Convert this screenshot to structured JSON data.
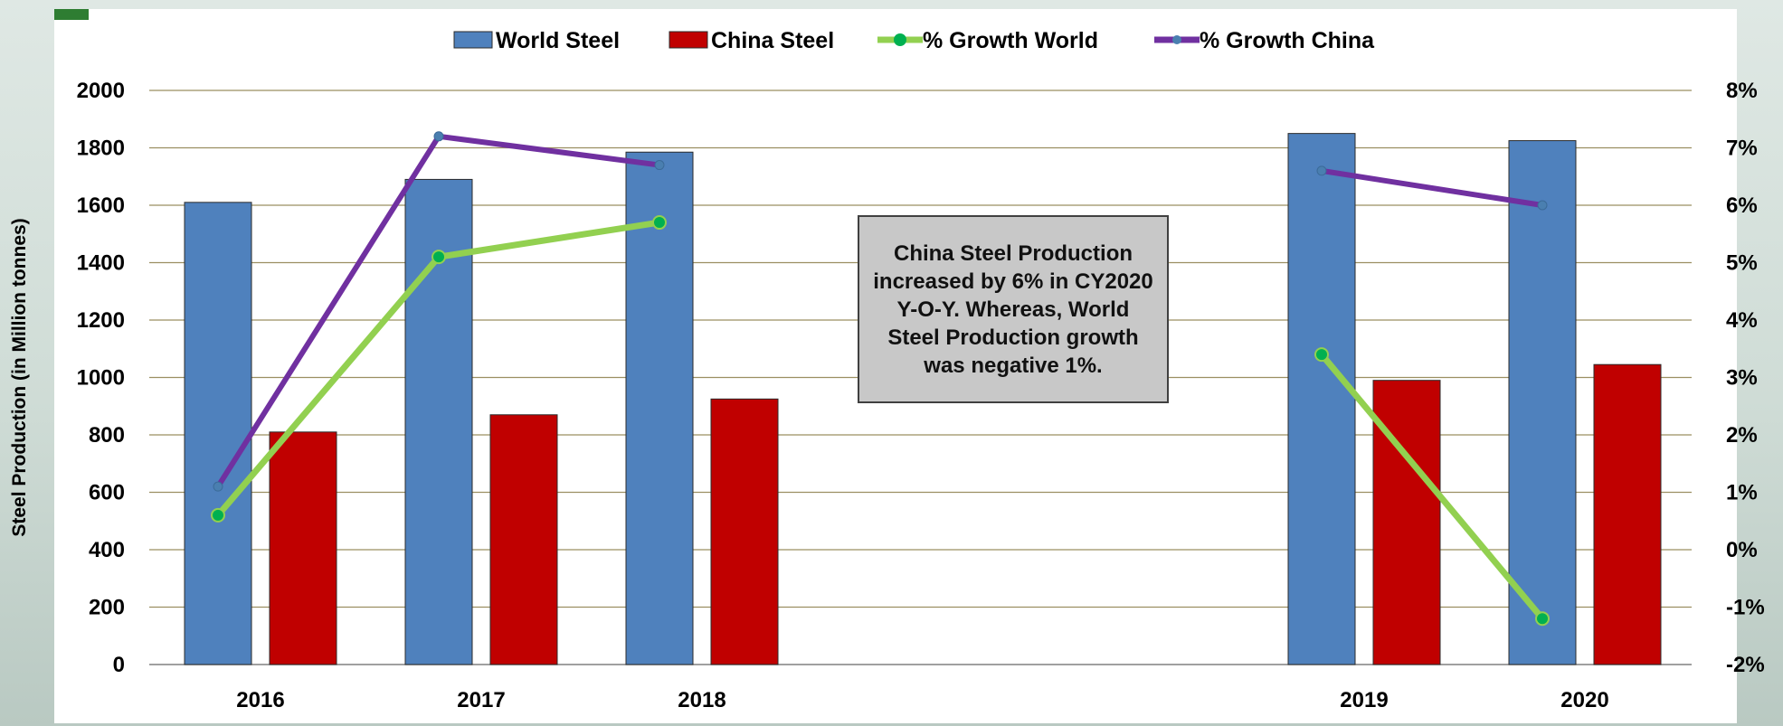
{
  "chart_data": {
    "type": "bar",
    "categories": [
      "2016",
      "2017",
      "2018",
      "2019",
      "2020"
    ],
    "series": [
      {
        "name": "World Steel",
        "kind": "bar",
        "axis": "left",
        "color": "#4f81bd",
        "values": [
          1610,
          1690,
          1785,
          1850,
          1825
        ]
      },
      {
        "name": "China Steel",
        "kind": "bar",
        "axis": "left",
        "color": "#c00000",
        "values": [
          810,
          870,
          925,
          990,
          1045
        ]
      },
      {
        "name": "% Growth World",
        "kind": "line",
        "axis": "right",
        "color": "#92d050",
        "values": [
          0.6,
          5.1,
          5.7,
          3.4,
          -1.2
        ]
      },
      {
        "name": "% Growth China",
        "kind": "line",
        "axis": "right",
        "color": "#7030a0",
        "values": [
          1.1,
          7.2,
          6.7,
          6.6,
          6.0
        ]
      }
    ],
    "ylabel": "Steel Production (in Million tonnes)",
    "ylim": [
      0,
      2000
    ],
    "yticks": [
      "0",
      "200",
      "400",
      "600",
      "800",
      "1000",
      "1200",
      "1400",
      "1600",
      "1800",
      "2000"
    ],
    "y2lim": [
      -2,
      8
    ],
    "y2ticks": [
      "-2%",
      "-1%",
      "0%",
      "1%",
      "2%",
      "3%",
      "4%",
      "5%",
      "6%",
      "7%",
      "8%"
    ],
    "grid": true,
    "legend_position": "top",
    "annotation": "China Steel Production increased by 6% in CY2020 Y-O-Y. Whereas, World Steel Production growth was negative 1%."
  }
}
